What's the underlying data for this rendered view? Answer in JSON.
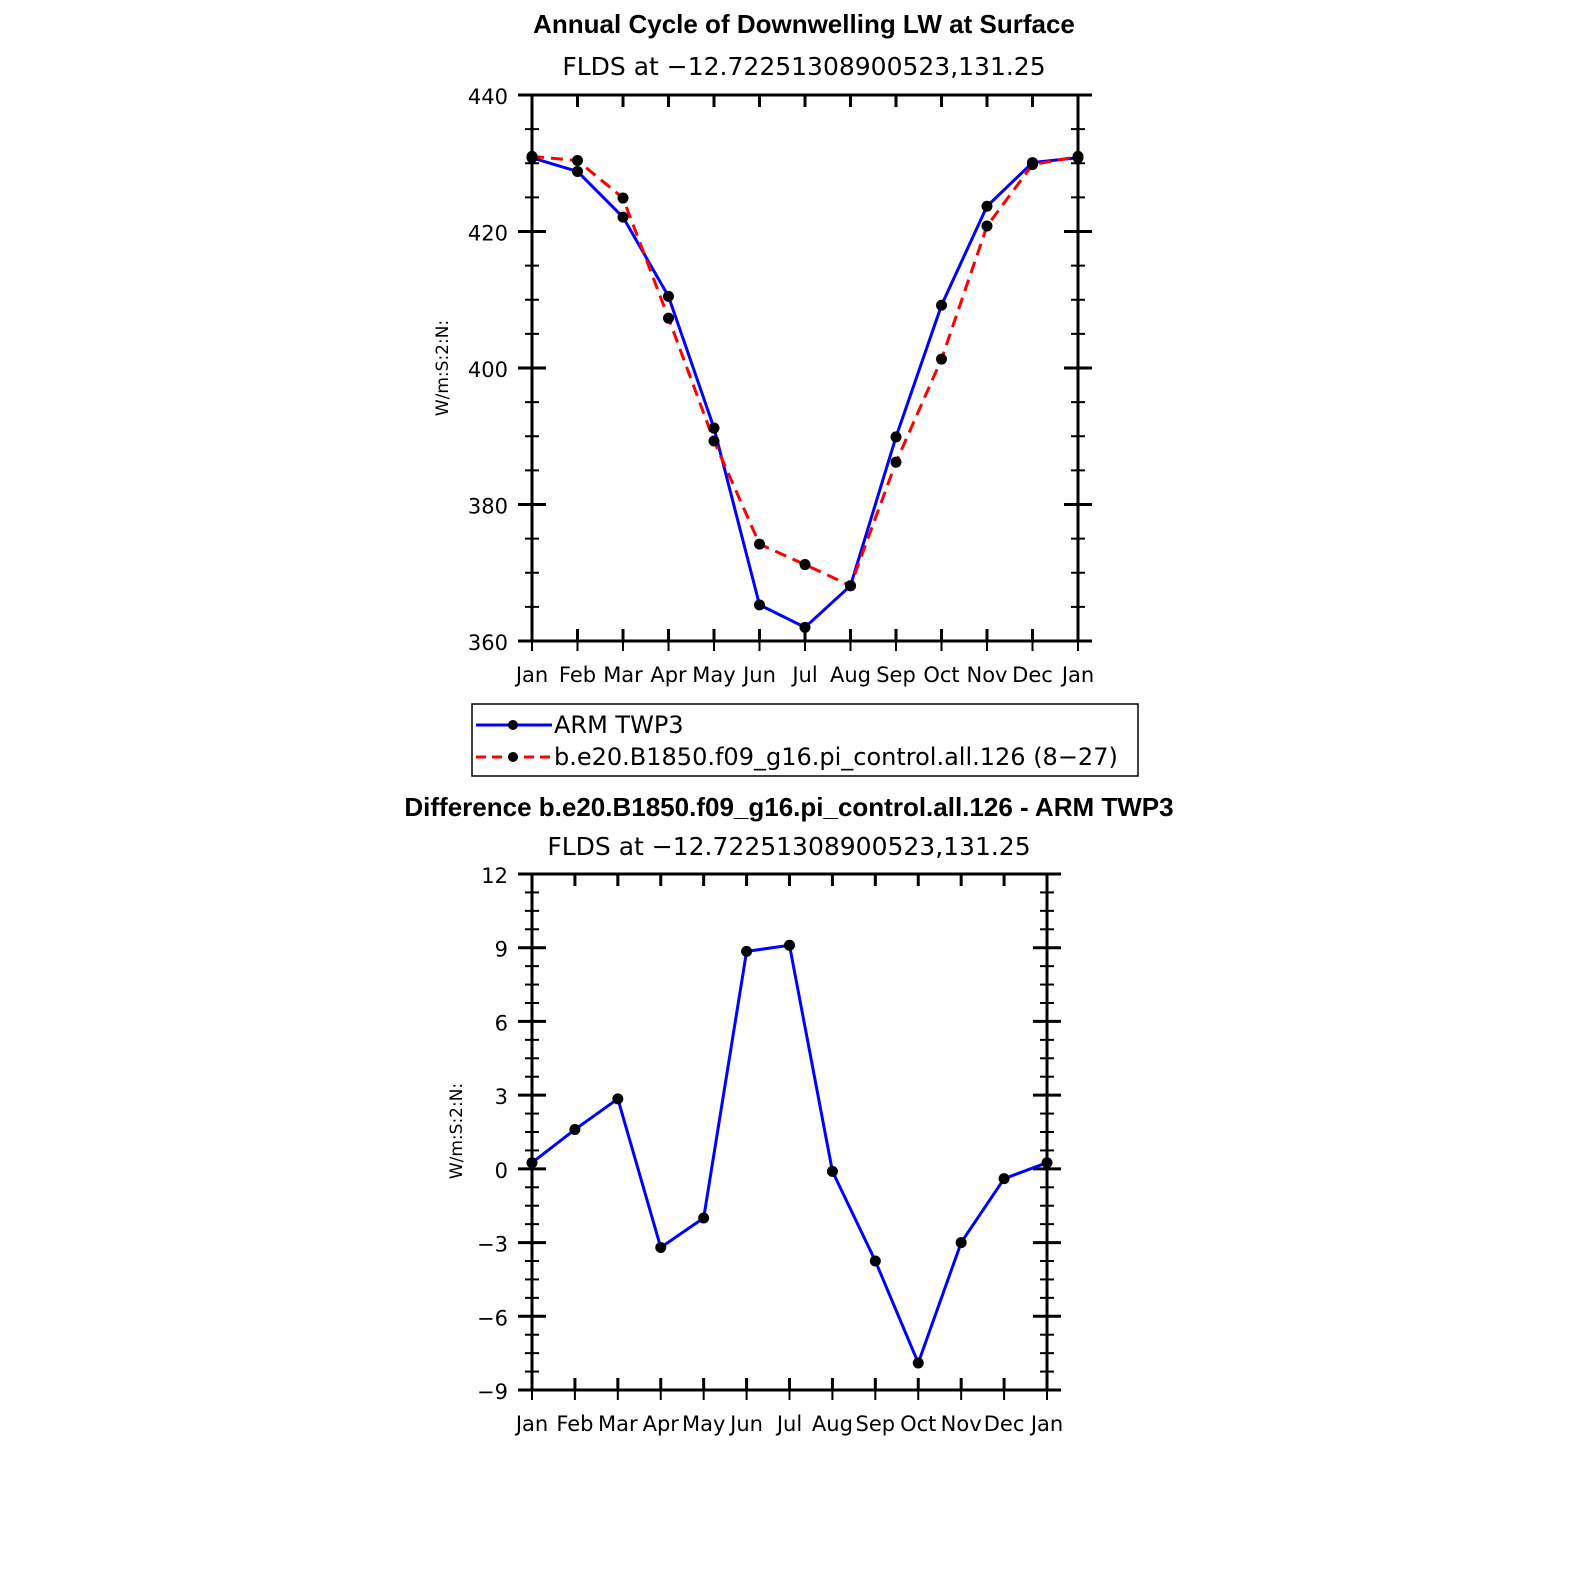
{
  "chart_data": [
    {
      "type": "line",
      "title": "Annual Cycle of Downwelling LW at Surface",
      "subtitle": "FLDS at −12.72251308900523,131.25",
      "ylabel": "W/m:S:2:N:",
      "xlabel": "",
      "categories": [
        "Jan",
        "Feb",
        "Mar",
        "Apr",
        "May",
        "Jun",
        "Jul",
        "Aug",
        "Sep",
        "Oct",
        "Nov",
        "Dec",
        "Jan"
      ],
      "ylim": [
        360,
        440
      ],
      "yticks": [
        "360",
        "380",
        "400",
        "420",
        "440"
      ],
      "grid": false,
      "legend_position": "bottom",
      "series": [
        {
          "name": "ARM TWP3",
          "color": "#0000ff",
          "dash": "solid",
          "values": [
            430.8,
            428.8,
            422.1,
            410.5,
            391.2,
            365.3,
            362.0,
            368.1,
            389.9,
            409.2,
            423.7,
            430.1,
            430.8
          ]
        },
        {
          "name": "b.e20.B1850.f09_g16.pi_control.all.126 (8−27)",
          "color": "#ff0000",
          "dash": "dashed",
          "values": [
            431.0,
            430.4,
            424.9,
            407.3,
            389.3,
            374.2,
            371.2,
            368.1,
            386.2,
            401.3,
            420.8,
            429.8,
            431.0
          ]
        }
      ]
    },
    {
      "type": "line",
      "title": "Difference b.e20.B1850.f09_g16.pi_control.all.126 - ARM TWP3",
      "subtitle": "FLDS at −12.72251308900523,131.25",
      "ylabel": "W/m:S:2:N:",
      "xlabel": "",
      "categories": [
        "Jan",
        "Feb",
        "Mar",
        "Apr",
        "May",
        "Jun",
        "Jul",
        "Aug",
        "Sep",
        "Oct",
        "Nov",
        "Dec",
        "Jan"
      ],
      "ylim": [
        -9,
        12
      ],
      "yticks": [
        "−9",
        "−6",
        "−3",
        "0",
        "3",
        "6",
        "9",
        "12"
      ],
      "grid": false,
      "series": [
        {
          "color": "#0000ff",
          "dash": "solid",
          "values": [
            0.25,
            1.6,
            2.85,
            -3.2,
            -2.0,
            8.85,
            9.1,
            -0.1,
            -3.75,
            -7.9,
            -3.0,
            -0.4,
            0.25
          ]
        }
      ]
    }
  ]
}
